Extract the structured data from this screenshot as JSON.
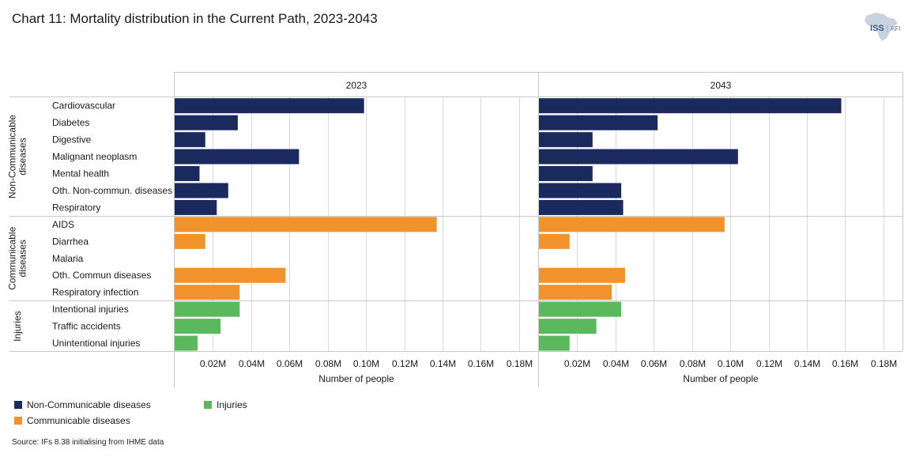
{
  "title": "Chart 11: Mortality distribution in the Current Path, 2023-2043",
  "logo": {
    "iss": "ISS",
    "afi": "AFI"
  },
  "source": "Source: IFs 8.38 initialising from IHME data",
  "colors": {
    "ncd": "#1b2a5e",
    "cd": "#f0932b",
    "inj": "#5cb85c",
    "grid": "#d9d9d9",
    "border": "#c8c8c8"
  },
  "chart_data": {
    "type": "bar",
    "orientation": "horizontal",
    "panels": [
      "2023",
      "2043"
    ],
    "xlabel": "Number of people",
    "xlim": [
      0,
      0.19
    ],
    "tick_values": [
      0.02,
      0.04,
      0.06,
      0.08,
      0.1,
      0.12,
      0.14,
      0.16,
      0.18
    ],
    "tick_labels": [
      "0.02M",
      "0.04M",
      "0.06M",
      "0.08M",
      "0.10M",
      "0.12M",
      "0.14M",
      "0.16M",
      "0.18M"
    ],
    "units": "millions of people",
    "groups": [
      {
        "label": "Non-Communicable diseases",
        "label_lines": [
          "Non-Communicable",
          "diseases"
        ],
        "color_key": "ncd",
        "categories": [
          "Cardiovascular",
          "Diabetes",
          "Digestive",
          "Malignant neoplasm",
          "Mental health",
          "Oth. Non-commun. diseases",
          "Respiratory"
        ],
        "values": {
          "2023": [
            0.099,
            0.033,
            0.016,
            0.065,
            0.013,
            0.028,
            0.022
          ],
          "2043": [
            0.158,
            0.062,
            0.028,
            0.104,
            0.028,
            0.043,
            0.044
          ]
        }
      },
      {
        "label": "Communicable diseases",
        "label_lines": [
          "Communicable",
          "diseases"
        ],
        "color_key": "cd",
        "categories": [
          "AIDS",
          "Diarrhea",
          "Malaria",
          "Oth. Commun diseases",
          "Respiratory infection"
        ],
        "values": {
          "2023": [
            0.137,
            0.016,
            0.0,
            0.058,
            0.034
          ],
          "2043": [
            0.097,
            0.016,
            0.0,
            0.045,
            0.038
          ]
        }
      },
      {
        "label": "Injuries",
        "label_lines": [
          "Injuries"
        ],
        "color_key": "inj",
        "categories": [
          "Intentional injuries",
          "Traffic accidents",
          "Unintentional injuries"
        ],
        "values": {
          "2023": [
            0.034,
            0.024,
            0.012
          ],
          "2043": [
            0.043,
            0.03,
            0.016
          ]
        }
      }
    ],
    "legend": [
      {
        "label": "Non-Communicable diseases",
        "color_key": "ncd"
      },
      {
        "label": "Injuries",
        "color_key": "inj"
      },
      {
        "label": "Communicable diseases",
        "color_key": "cd"
      }
    ]
  }
}
